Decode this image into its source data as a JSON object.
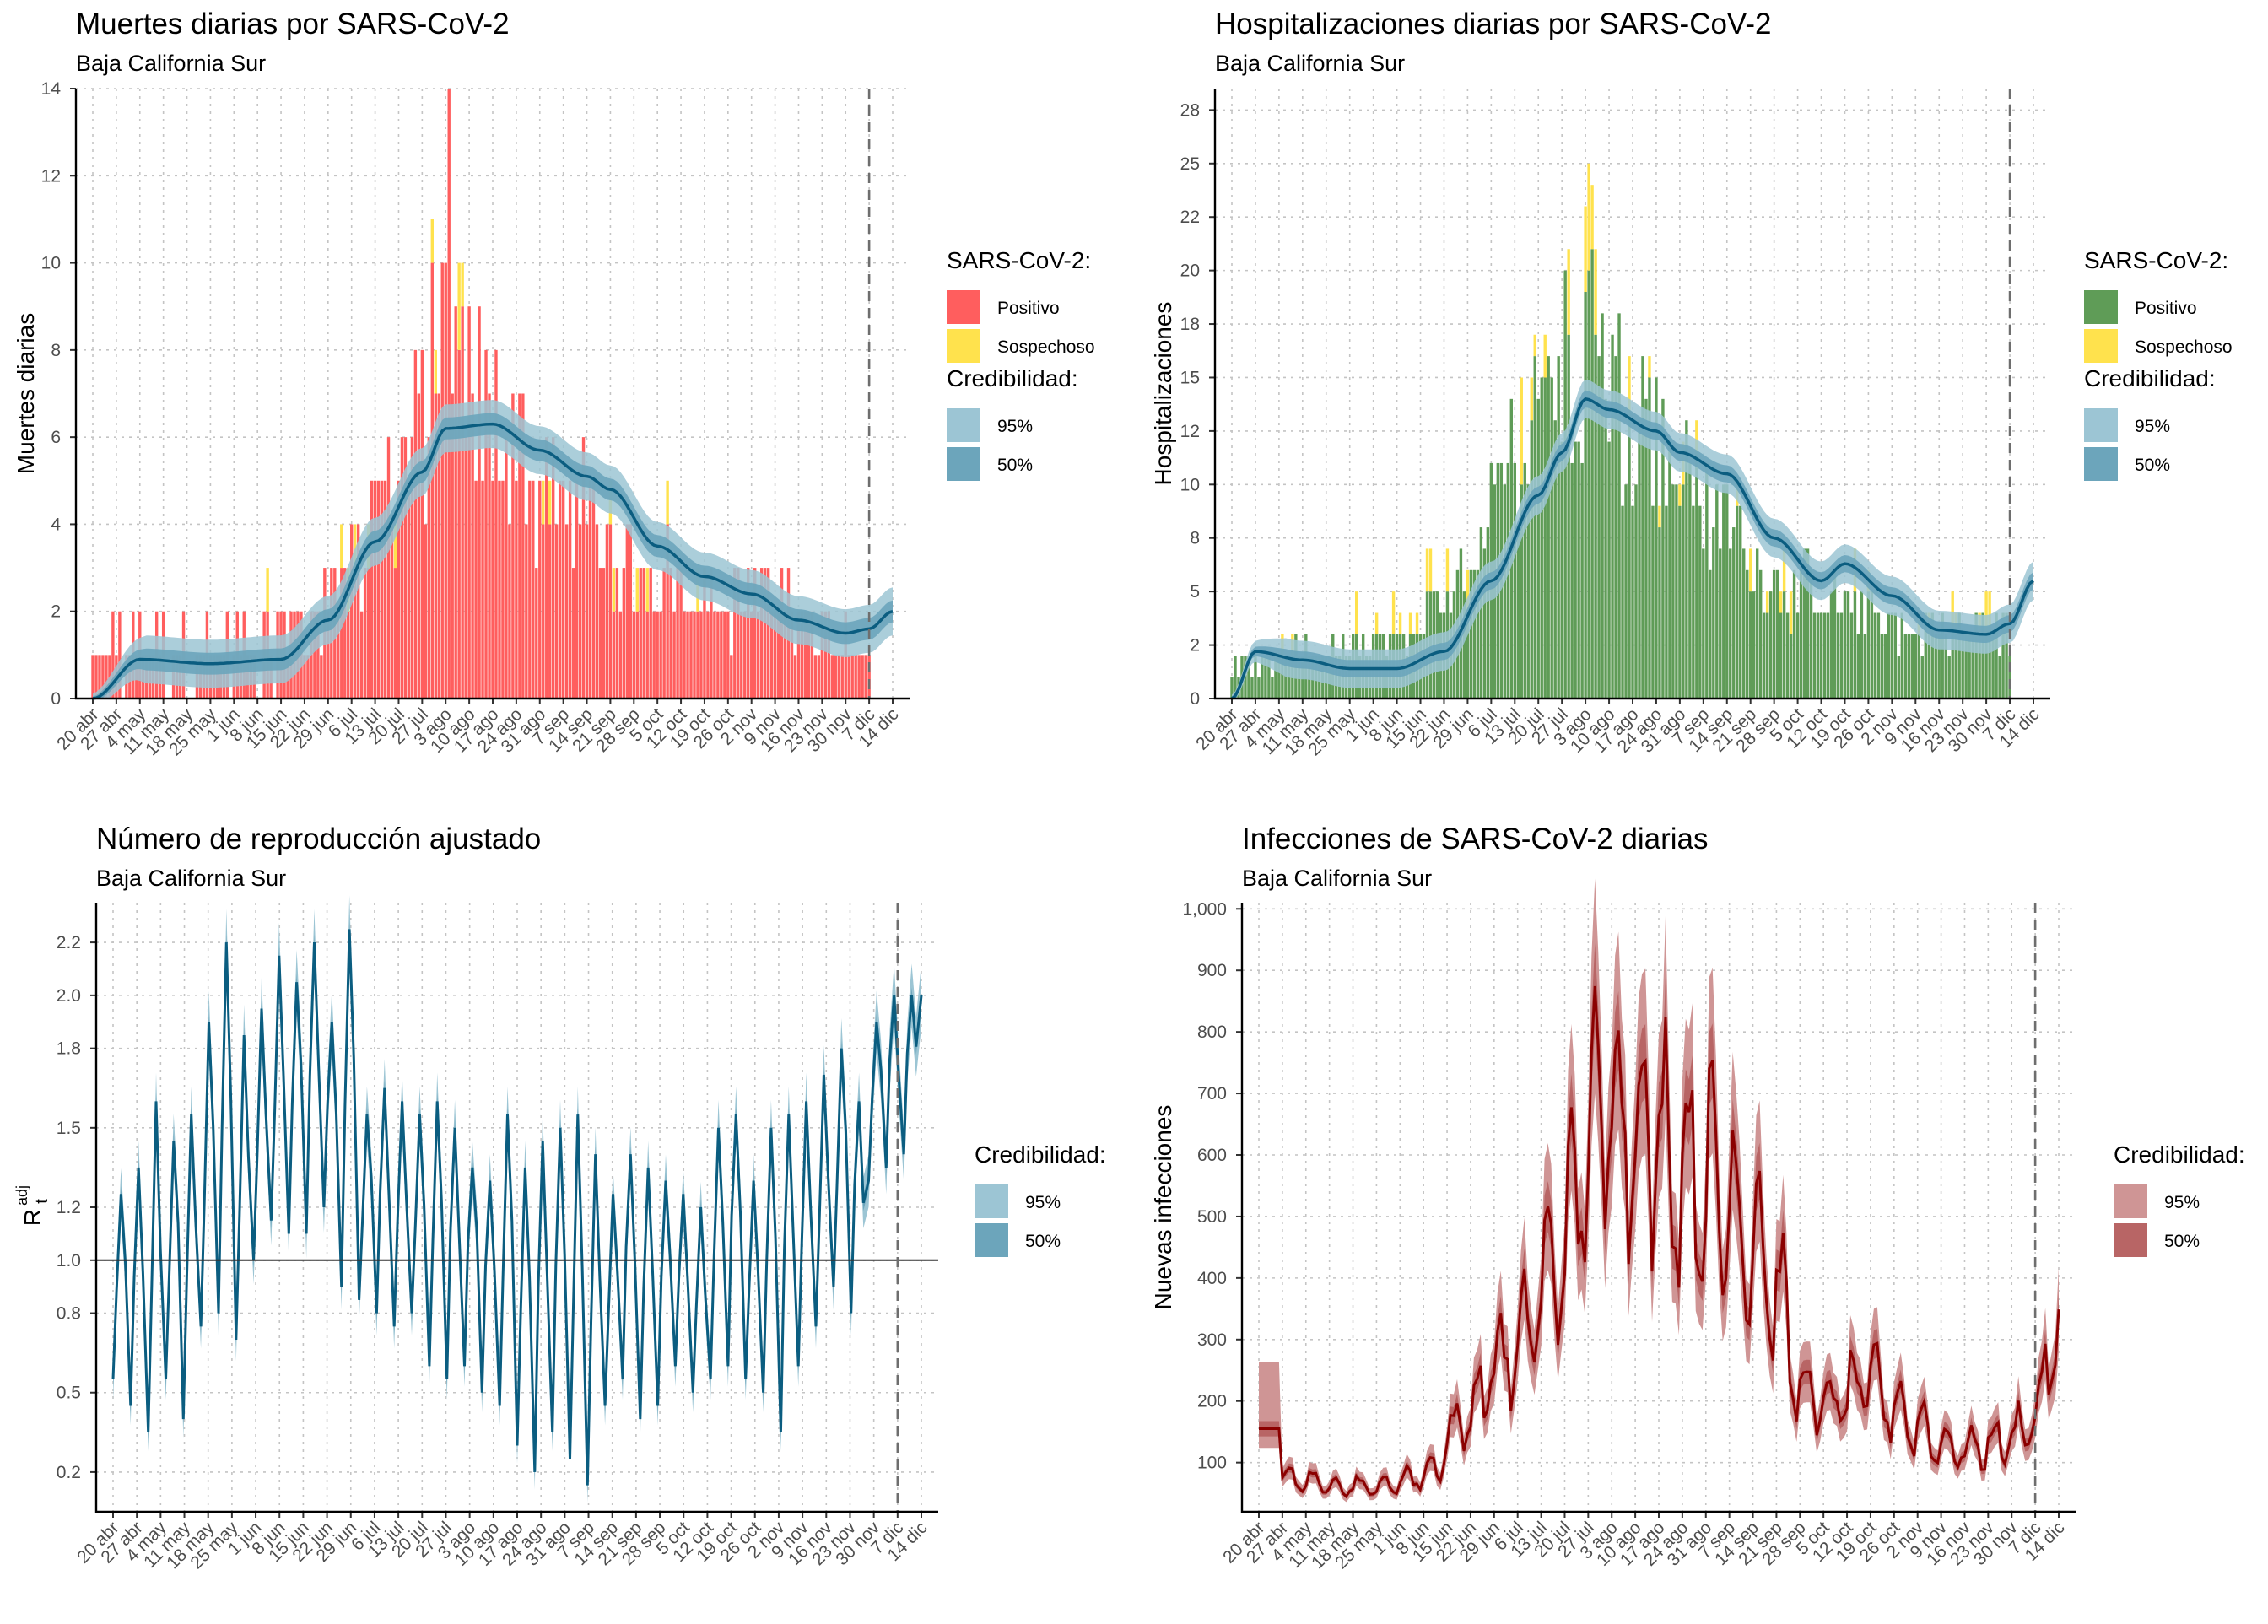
{
  "colors": {
    "positive_deaths": "#ff5e5e",
    "positive_hosp": "#5f9c57",
    "suspected": "#ffe24d",
    "blue_line": "#0b5d80",
    "blue_95": "#9cc5d4",
    "blue_50": "#6ca5bb",
    "red_line": "#8b0000",
    "red_95": "#cf9595",
    "red_50": "#b86565"
  },
  "x_axis_ticks": [
    "20 abr",
    "27 abr",
    "4 may",
    "11 may",
    "18 may",
    "25 may",
    "1 jun",
    "8 jun",
    "15 jun",
    "22 jun",
    "29 jun",
    "6 jul",
    "13 jul",
    "20 jul",
    "27 jul",
    "3 ago",
    "10 ago",
    "17 ago",
    "24 ago",
    "31 ago",
    "7 sep",
    "14 sep",
    "21 sep",
    "28 sep",
    "5 oct",
    "12 oct",
    "19 oct",
    "26 oct",
    "2 nov",
    "9 nov",
    "16 nov",
    "23 nov",
    "30 nov",
    "7 dic",
    "14 dic"
  ],
  "panels": [
    {
      "id": "deaths",
      "title": "Muertes diarias por SARS-CoV-2",
      "subtitle": "Baja California Sur",
      "ylabel": "Muertes diarias",
      "legend_title": "SARS-CoV-2:",
      "legend_items": [
        "Positivo",
        "Sospechoso"
      ],
      "cred_title": "Credibilidad:",
      "cred_items": [
        "95%",
        "50%"
      ],
      "y_ticks": [
        "0",
        "2",
        "4",
        "6",
        "8",
        "10",
        "12",
        "14"
      ]
    },
    {
      "id": "hosp",
      "title": "Hospitalizaciones diarias por SARS-CoV-2",
      "subtitle": "Baja California Sur",
      "ylabel": "Hospitalizaciones",
      "legend_title": "SARS-CoV-2:",
      "legend_items": [
        "Positivo",
        "Sospechoso"
      ],
      "cred_title": "Credibilidad:",
      "cred_items": [
        "95%",
        "50%"
      ],
      "y_ticks": [
        "0",
        "2",
        "5",
        "8",
        "10",
        "12",
        "15",
        "18",
        "20",
        "22",
        "25",
        "28"
      ]
    },
    {
      "id": "rt",
      "title": "Número de reproducción ajustado",
      "subtitle": "Baja California Sur",
      "ylabel_main": "R",
      "ylabel_sub": "t",
      "ylabel_sup": "adj",
      "cred_title": "Credibilidad:",
      "cred_items": [
        "95%",
        "50%"
      ],
      "y_ticks": [
        "0.2",
        "0.5",
        "0.8",
        "1.0",
        "1.2",
        "1.5",
        "1.8",
        "2.0",
        "2.2"
      ]
    },
    {
      "id": "inf",
      "title": "Infecciones de SARS-CoV-2 diarias",
      "subtitle": "Baja California Sur",
      "ylabel": "Nuevas infecciones",
      "cred_title": "Credibilidad:",
      "cred_items": [
        "95%",
        "50%"
      ],
      "y_ticks": [
        "100",
        "200",
        "300",
        "400",
        "500",
        "600",
        "700",
        "800",
        "900",
        "1,000"
      ]
    }
  ],
  "chart_data": [
    {
      "type": "bar",
      "title": "Muertes diarias por SARS-CoV-2",
      "subtitle": "Baja California Sur",
      "ylabel": "Muertes diarias",
      "ylim": [
        0,
        14
      ],
      "x_start": "20 abr",
      "x_end": "14 dic",
      "forecast_line": "7 dic",
      "grid": true,
      "legend_position": "right",
      "series": [
        {
          "name": "Positivo",
          "keyframes": [
            [
              "20 abr",
              1
            ],
            [
              "4 may",
              1
            ],
            [
              "25 may",
              1
            ],
            [
              "8 jun",
              1
            ],
            [
              "22 jun",
              1.5
            ],
            [
              "6 jul",
              3
            ],
            [
              "20 jul",
              5
            ],
            [
              "27 jul",
              6
            ],
            [
              "3 ago",
              8
            ],
            [
              "10 ago",
              7
            ],
            [
              "17 ago",
              6
            ],
            [
              "24 ago",
              6
            ],
            [
              "31 ago",
              4.5
            ],
            [
              "14 sep",
              4
            ],
            [
              "28 sep",
              3
            ],
            [
              "12 oct",
              2.5
            ],
            [
              "26 oct",
              2
            ],
            [
              "9 nov",
              2
            ],
            [
              "23 nov",
              1.5
            ],
            [
              "7 dic",
              1.2
            ]
          ]
        },
        {
          "name": "Sospechoso",
          "keyframes": [
            [
              "20 abr",
              0
            ],
            [
              "25 may",
              0.2
            ],
            [
              "20 jul",
              0.5
            ],
            [
              "17 ago",
              0.6
            ],
            [
              "21 sep",
              0.3
            ],
            [
              "7 dic",
              0.1
            ]
          ]
        }
      ],
      "bands": {
        "median": [
          [
            "20 abr",
            0
          ],
          [
            "4 may",
            0.9
          ],
          [
            "25 may",
            0.8
          ],
          [
            "15 jun",
            0.9
          ],
          [
            "29 jun",
            1.8
          ],
          [
            "13 jul",
            3.6
          ],
          [
            "27 jul",
            5.2
          ],
          [
            "3 ago",
            6.2
          ],
          [
            "17 ago",
            6.3
          ],
          [
            "31 ago",
            5.7
          ],
          [
            "14 sep",
            5.1
          ],
          [
            "21 sep",
            4.8
          ],
          [
            "5 oct",
            3.5
          ],
          [
            "19 oct",
            2.8
          ],
          [
            "2 nov",
            2.4
          ],
          [
            "16 nov",
            1.8
          ],
          [
            "30 nov",
            1.5
          ],
          [
            "7 dic",
            1.6
          ],
          [
            "14 dic",
            2.0
          ]
        ],
        "ci50_half": 0.25,
        "ci95_half": 0.55
      },
      "peak_labels": {
        "max_positive": 14
      }
    },
    {
      "type": "bar",
      "title": "Hospitalizaciones diarias por SARS-CoV-2",
      "subtitle": "Baja California Sur",
      "ylabel": "Hospitalizaciones",
      "ylim": [
        0,
        28.5
      ],
      "x_start": "20 abr",
      "x_end": "14 dic",
      "forecast_line": "7 dic",
      "grid": true,
      "legend_position": "right",
      "series": [
        {
          "name": "Positivo",
          "keyframes": [
            [
              "20 abr",
              1.5
            ],
            [
              "4 may",
              2
            ],
            [
              "25 may",
              2
            ],
            [
              "8 jun",
              2.5
            ],
            [
              "22 jun",
              4
            ],
            [
              "6 jul",
              8
            ],
            [
              "20 jul",
              14
            ],
            [
              "3 ago",
              16
            ],
            [
              "17 ago",
              13
            ],
            [
              "31 ago",
              10
            ],
            [
              "14 sep",
              8
            ],
            [
              "28 sep",
              5
            ],
            [
              "12 oct",
              5
            ],
            [
              "26 oct",
              4
            ],
            [
              "9 nov",
              3
            ],
            [
              "23 nov",
              3
            ],
            [
              "7 dic",
              3
            ]
          ]
        },
        {
          "name": "Sospechoso",
          "keyframes": [
            [
              "20 abr",
              0.2
            ],
            [
              "22 jun",
              0.8
            ],
            [
              "20 jul",
              2
            ],
            [
              "3 ago",
              2.5
            ],
            [
              "17 ago",
              1.5
            ],
            [
              "14 sep",
              0.8
            ],
            [
              "7 dic",
              0.6
            ]
          ]
        }
      ],
      "bands": {
        "median": [
          [
            "20 abr",
            0
          ],
          [
            "27 abr",
            2.2
          ],
          [
            "11 may",
            1.8
          ],
          [
            "25 may",
            1.4
          ],
          [
            "8 jun",
            1.4
          ],
          [
            "22 jun",
            2.2
          ],
          [
            "6 jul",
            5.5
          ],
          [
            "20 jul",
            9.5
          ],
          [
            "27 jul",
            11.5
          ],
          [
            "3 ago",
            14
          ],
          [
            "10 ago",
            13.5
          ],
          [
            "24 ago",
            12.5
          ],
          [
            "31 ago",
            11.5
          ],
          [
            "14 sep",
            10.5
          ],
          [
            "28 sep",
            7.5
          ],
          [
            "12 oct",
            5.5
          ],
          [
            "19 oct",
            6.3
          ],
          [
            "2 nov",
            4.8
          ],
          [
            "16 nov",
            3.2
          ],
          [
            "30 nov",
            3.0
          ],
          [
            "7 dic",
            3.5
          ],
          [
            "14 dic",
            5.5
          ]
        ],
        "ci50_half": 0.4,
        "ci95_half": 0.9
      }
    },
    {
      "type": "line",
      "title": "Número de reproducción ajustado",
      "subtitle": "Baja California Sur",
      "ylabel": "R_t^adj",
      "ylim": [
        0.05,
        2.35
      ],
      "reference_line": 1.0,
      "x_start": "20 abr",
      "x_end": "14 dic",
      "forecast_line": "7 dic",
      "grid": true,
      "legend_position": "right",
      "series": [
        {
          "name": "Rt",
          "peaks": [
            1.25,
            1.35,
            1.6,
            1.45,
            1.55,
            1.9,
            2.2,
            1.85,
            1.95,
            2.15,
            2.05,
            2.2,
            1.9,
            2.25,
            1.55,
            1.65,
            1.6,
            1.55,
            1.6,
            1.5,
            1.35,
            1.3,
            1.55,
            1.35,
            1.45,
            1.5,
            1.55,
            1.4,
            1.25,
            1.4,
            1.35,
            1.3,
            1.25,
            1.2,
            1.5,
            1.55,
            1.3,
            1.5,
            1.55,
            1.6,
            1.7,
            1.8,
            1.6,
            1.9,
            2.0,
            2.0
          ],
          "troughs": [
            0.55,
            0.45,
            0.35,
            0.55,
            0.4,
            0.75,
            0.8,
            0.7,
            1.0,
            1.15,
            1.1,
            1.1,
            1.2,
            0.9,
            0.85,
            0.8,
            0.75,
            0.8,
            0.6,
            0.55,
            0.6,
            0.5,
            0.45,
            0.3,
            0.2,
            0.35,
            0.25,
            0.15,
            0.45,
            0.55,
            0.4,
            0.45,
            0.6,
            0.5,
            0.55,
            0.6,
            0.55,
            0.5,
            0.35,
            0.6,
            0.75,
            0.9,
            0.8,
            1.3,
            1.35,
            1.4
          ]
        }
      ],
      "bands": {
        "ci50_half": 0.03,
        "ci95_half": 0.06
      }
    },
    {
      "type": "line",
      "title": "Infecciones de SARS-CoV-2 diarias",
      "subtitle": "Baja California Sur",
      "ylabel": "Nuevas infecciones",
      "ylim": [
        20,
        1010
      ],
      "x_start": "20 abr",
      "x_end": "14 dic",
      "forecast_line": "7 dic",
      "grid": true,
      "legend_position": "right",
      "series": [
        {
          "name": "Infecciones",
          "keyframes": [
            [
              "20 abr",
              155
            ],
            [
              "27 abr",
              75
            ],
            [
              "11 may",
              65
            ],
            [
              "25 may",
              60
            ],
            [
              "8 jun",
              80
            ],
            [
              "22 jun",
              180
            ],
            [
              "29 jun",
              260
            ],
            [
              "6 jul",
              280
            ],
            [
              "13 jul",
              380
            ],
            [
              "20 jul",
              460
            ],
            [
              "27 jul",
              620
            ],
            [
              "3 ago",
              700
            ],
            [
              "10 ago",
              650
            ],
            [
              "17 ago",
              620
            ],
            [
              "24 ago",
              580
            ],
            [
              "31 ago",
              560
            ],
            [
              "7 sep",
              520
            ],
            [
              "14 sep",
              470
            ],
            [
              "21 sep",
              380
            ],
            [
              "28 sep",
              220
            ],
            [
              "5 oct",
              190
            ],
            [
              "12 oct",
              210
            ],
            [
              "19 oct",
              230
            ],
            [
              "26 oct",
              190
            ],
            [
              "2 nov",
              160
            ],
            [
              "9 nov",
              130
            ],
            [
              "16 nov",
              120
            ],
            [
              "23 nov",
              130
            ],
            [
              "30 nov",
              140
            ],
            [
              "7 dic",
              180
            ],
            [
              "14 dic",
              320
            ]
          ]
        }
      ],
      "bands": {
        "ci50_frac": 0.08,
        "ci95_frac": 0.2
      }
    }
  ]
}
